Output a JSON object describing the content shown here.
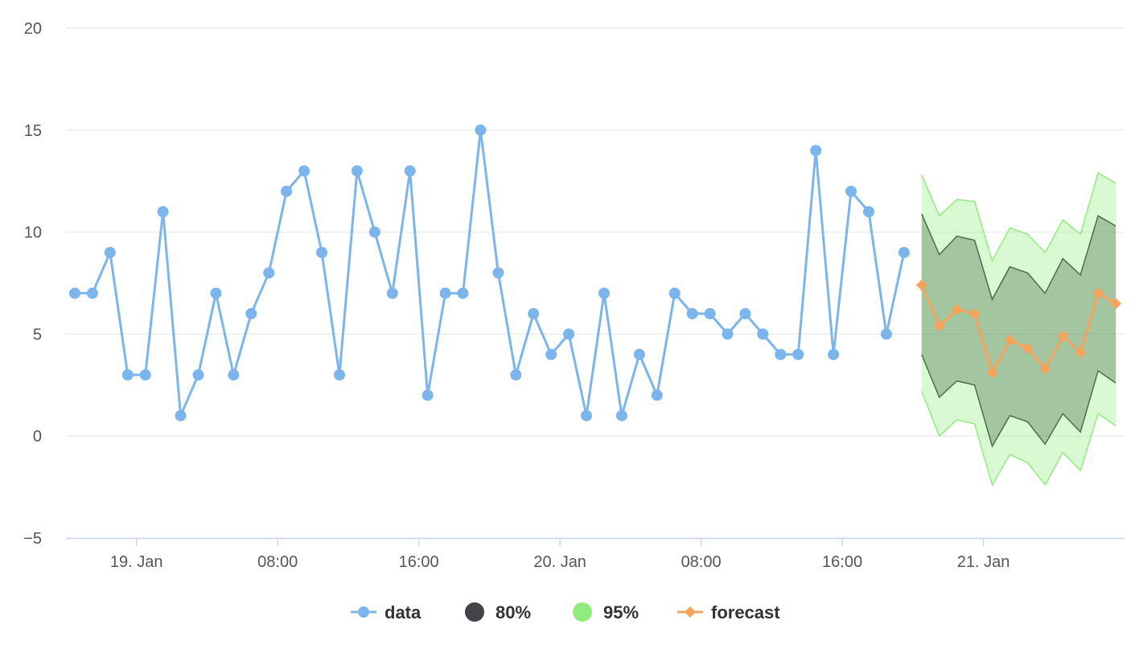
{
  "chart_data": {
    "type": "line",
    "title": "",
    "xlabel": "",
    "ylabel": "",
    "ylim": [
      -5,
      20
    ],
    "yticks": [
      -5,
      0,
      5,
      10,
      15,
      20
    ],
    "ytick_labels": [
      "−5",
      "0",
      "5",
      "10",
      "15",
      "20"
    ],
    "xlim_hours": [
      -4,
      56
    ],
    "xticks": [
      {
        "hour": 0,
        "label": "19. Jan"
      },
      {
        "hour": 8,
        "label": "08:00"
      },
      {
        "hour": 16,
        "label": "16:00"
      },
      {
        "hour": 24,
        "label": "20. Jan"
      },
      {
        "hour": 32,
        "label": "08:00"
      },
      {
        "hour": 40,
        "label": "16:00"
      },
      {
        "hour": 48,
        "label": "21. Jan"
      }
    ],
    "x_unit": "hours since 19. Jan 00:00",
    "grid": true,
    "legend_position": "bottom-center",
    "series": [
      {
        "name": "data",
        "color": "#7cb5ec",
        "x": [
          -3.5,
          -2.5,
          -1.5,
          -0.5,
          0.5,
          1.5,
          2.5,
          3.5,
          4.5,
          5.5,
          6.5,
          7.5,
          8.5,
          9.5,
          10.5,
          11.5,
          12.5,
          13.5,
          14.5,
          15.5,
          16.5,
          17.5,
          18.5,
          19.5,
          20.5,
          21.5,
          22.5,
          23.5,
          24.5,
          25.5,
          26.5,
          27.5,
          28.5,
          29.5,
          30.5,
          31.5,
          32.5,
          33.5,
          34.5,
          35.5,
          36.5,
          37.5,
          38.5,
          39.5,
          40.5,
          41.5,
          42.5,
          43.5
        ],
        "values": [
          7,
          7,
          9,
          3,
          3,
          11,
          1,
          3,
          7,
          3,
          6,
          8,
          12,
          13,
          9,
          3,
          13,
          10,
          7,
          13,
          2,
          7,
          7,
          15,
          8,
          3,
          6,
          4,
          5,
          1,
          7,
          1,
          4,
          2,
          7,
          6,
          6,
          5,
          6,
          5,
          4,
          4,
          14,
          4,
          12,
          11,
          5,
          9
        ]
      },
      {
        "name": "80%",
        "color": "#434348",
        "fill": "rgba(67,100,67,0.35)",
        "x": [
          44.5,
          45.5,
          46.5,
          47.5,
          48.5,
          49.5,
          50.5,
          51.5,
          52.5,
          53.5,
          54.5,
          55.5
        ],
        "low": [
          4,
          1.9,
          2.7,
          2.5,
          -0.5,
          1,
          0.7,
          -0.4,
          1.1,
          0.2,
          3.2,
          2.6
        ],
        "high": [
          10.9,
          8.9,
          9.8,
          9.6,
          6.7,
          8.3,
          8,
          7,
          8.7,
          7.9,
          10.8,
          10.3
        ]
      },
      {
        "name": "95%",
        "color": "#90ed7d",
        "fill": "rgba(144,237,125,0.35)",
        "x": [
          44.5,
          45.5,
          46.5,
          47.5,
          48.5,
          49.5,
          50.5,
          51.5,
          52.5,
          53.5,
          54.5,
          55.5
        ],
        "low": [
          2.2,
          0,
          0.8,
          0.6,
          -2.4,
          -0.9,
          -1.3,
          -2.4,
          -0.8,
          -1.7,
          1.1,
          0.5
        ],
        "high": [
          12.8,
          10.8,
          11.6,
          11.5,
          8.6,
          10.2,
          9.9,
          9,
          10.6,
          9.9,
          12.9,
          12.4
        ]
      },
      {
        "name": "forecast",
        "color": "#f7a35c",
        "x": [
          44.5,
          45.5,
          46.5,
          47.5,
          48.5,
          49.5,
          50.5,
          51.5,
          52.5,
          53.5,
          54.5,
          55.5
        ],
        "values": [
          7.4,
          5.4,
          6.2,
          6,
          3.1,
          4.7,
          4.3,
          3.3,
          4.9,
          4.1,
          7,
          6.5
        ]
      }
    ]
  }
}
